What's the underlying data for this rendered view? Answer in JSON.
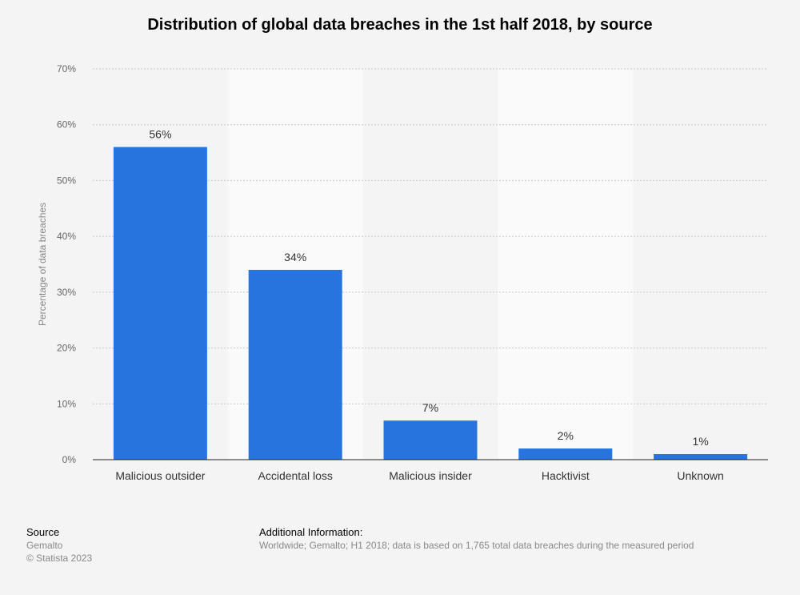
{
  "title": "Distribution of global data breaches in the 1st half 2018, by source",
  "chart_data": {
    "type": "bar",
    "categories": [
      "Malicious outsider",
      "Accidental loss",
      "Malicious insider",
      "Hacktivist",
      "Unknown"
    ],
    "values": [
      56,
      34,
      7,
      2,
      1
    ],
    "value_labels": [
      "56%",
      "34%",
      "7%",
      "2%",
      "1%"
    ],
    "ylabel": "Percentage of data breaches",
    "ylim": [
      0,
      70
    ],
    "yticks": [
      0,
      10,
      20,
      30,
      40,
      50,
      60,
      70
    ],
    "ytick_labels": [
      "0%",
      "10%",
      "20%",
      "30%",
      "40%",
      "50%",
      "60%",
      "70%"
    ],
    "grid": true,
    "bar_color": "#2874de"
  },
  "footer": {
    "source_heading": "Source",
    "source_name": "Gemalto",
    "copyright": "© Statista 2023",
    "info_heading": "Additional Information:",
    "info_text": "Worldwide; Gemalto; H1 2018; data is based on 1,765 total data breaches during the measured period"
  }
}
